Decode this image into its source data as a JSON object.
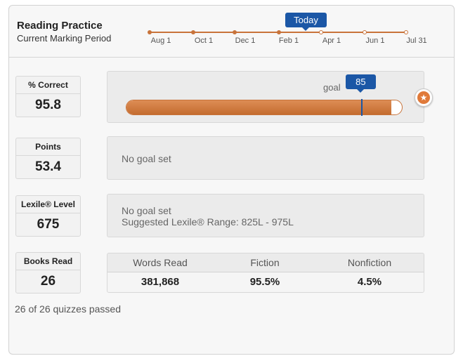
{
  "header": {
    "title": "Reading Practice",
    "subtitle": "Current Marking Period"
  },
  "timeline": {
    "today_label": "Today",
    "dates": [
      "Aug 1",
      "Oct 1",
      "Dec 1",
      "Feb 1",
      "Apr 1",
      "Jun 1",
      "Jul 31"
    ]
  },
  "stats": [
    {
      "label": "% Correct",
      "value": "95.8"
    },
    {
      "label": "Points",
      "value": "53.4"
    },
    {
      "label": "Lexile® Level",
      "value": "675"
    },
    {
      "label": "Books Read",
      "value": "26"
    }
  ],
  "correct_panel": {
    "goal_label": "goal",
    "goal_value": "85",
    "progress_percent": 95.8,
    "goal_percent": 85
  },
  "points_panel": {
    "message": "No goal set"
  },
  "lexile_panel": {
    "message": "No goal set",
    "range": "Suggested Lexile® Range: 825L - 975L"
  },
  "books_panel": {
    "columns": [
      {
        "label": "Words Read",
        "value": "381,868"
      },
      {
        "label": "Fiction",
        "value": "95.5%"
      },
      {
        "label": "Nonfiction",
        "value": "4.5%"
      }
    ]
  },
  "footer": {
    "quizzes": "26 of 26 quizzes passed"
  },
  "colors": {
    "accent": "#c8733a",
    "badge": "#1b57a6"
  },
  "icons": {
    "star": "star-icon"
  }
}
